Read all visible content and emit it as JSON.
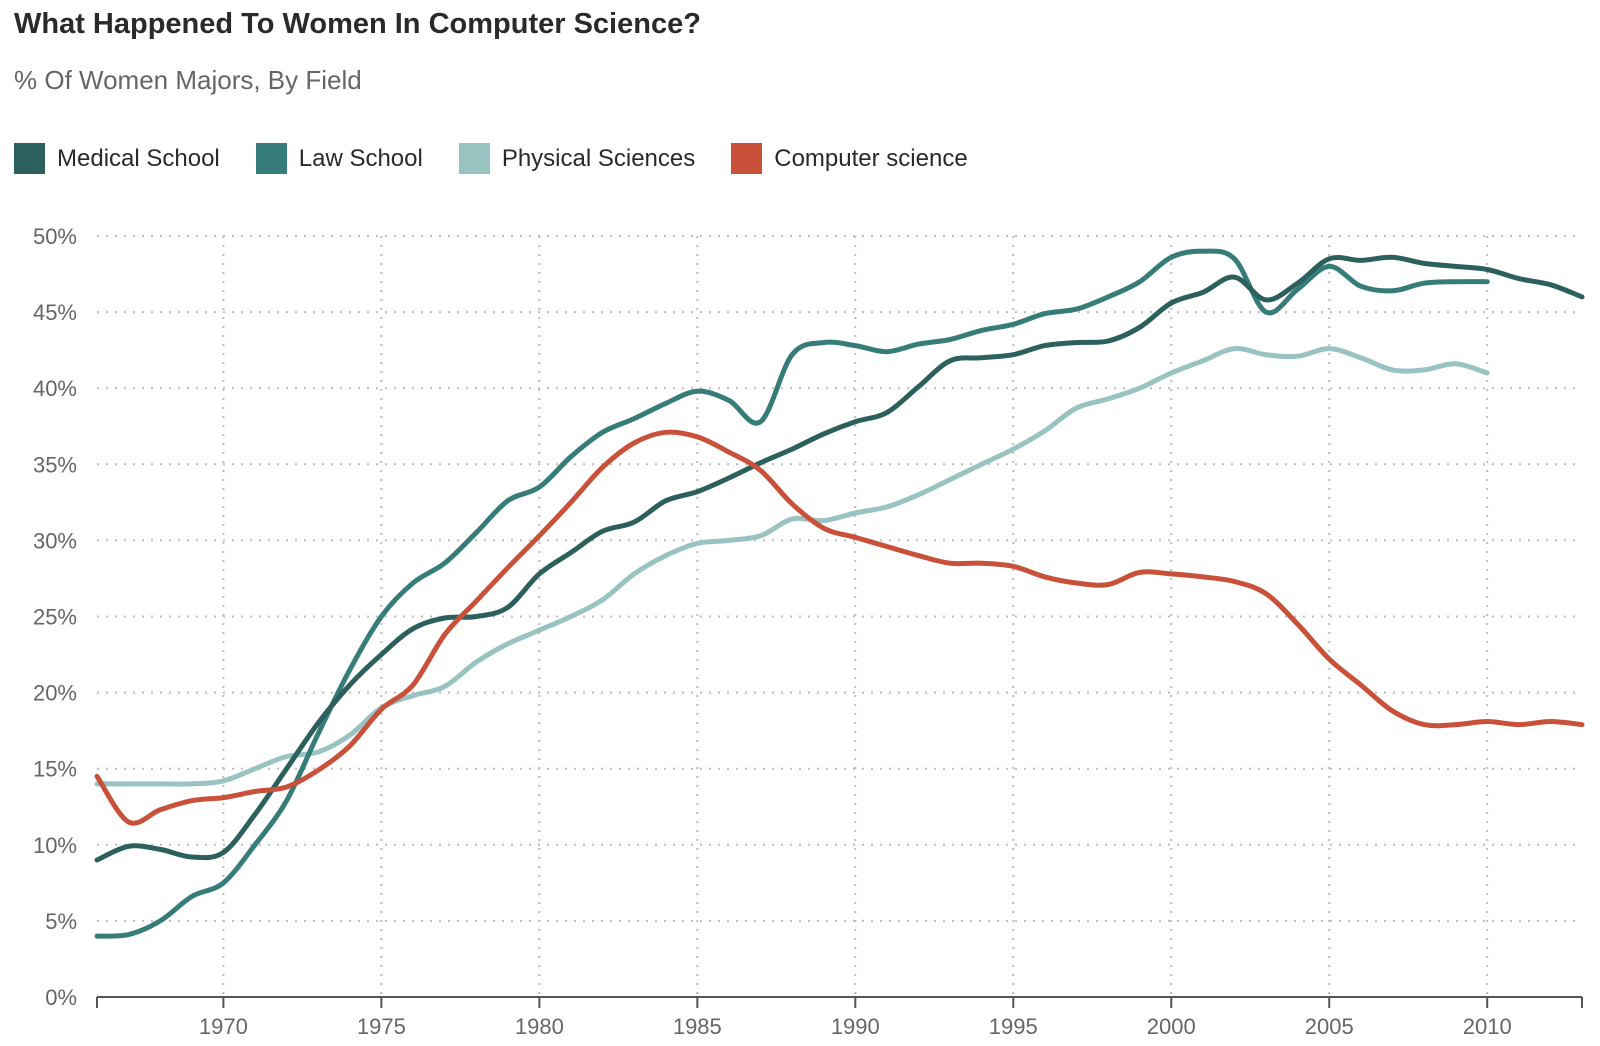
{
  "title": "What Happened To Women In Computer Science?",
  "subtitle": "% Of Women Majors, By Field",
  "chart_data": {
    "type": "line",
    "title": "What Happened To Women In Computer Science?",
    "subtitle": "% Of Women Majors, By Field",
    "xlabel": "",
    "ylabel": "",
    "xlim": [
      1966,
      2013
    ],
    "ylim": [
      0,
      50
    ],
    "x_ticks": [
      1970,
      1975,
      1980,
      1985,
      1990,
      1995,
      2000,
      2005,
      2010
    ],
    "y_ticks": [
      0,
      5,
      10,
      15,
      20,
      25,
      30,
      35,
      40,
      45,
      50
    ],
    "x_tick_labels": [
      "1970",
      "1975",
      "1980",
      "1985",
      "1990",
      "1995",
      "2000",
      "2005",
      "2010"
    ],
    "y_tick_labels": [
      "0%",
      "5%",
      "10%",
      "15%",
      "20%",
      "25%",
      "30%",
      "35%",
      "40%",
      "45%",
      "50%"
    ],
    "grid": true,
    "legend_position": "top-left",
    "series": [
      {
        "name": "Medical School",
        "color": "#2b605c",
        "x": [
          1966,
          1967,
          1968,
          1969,
          1970,
          1971,
          1972,
          1973,
          1974,
          1975,
          1976,
          1977,
          1978,
          1979,
          1980,
          1981,
          1982,
          1983,
          1984,
          1985,
          1986,
          1987,
          1988,
          1989,
          1990,
          1991,
          1992,
          1993,
          1994,
          1995,
          1996,
          1997,
          1998,
          1999,
          2000,
          2001,
          2002,
          2003,
          2004,
          2005,
          2006,
          2007,
          2008,
          2009,
          2010,
          2011,
          2012,
          2013
        ],
        "y": [
          9.0,
          9.9,
          9.7,
          9.2,
          9.5,
          12.0,
          15.0,
          18.0,
          20.5,
          22.5,
          24.2,
          24.9,
          25.0,
          25.6,
          27.8,
          29.2,
          30.6,
          31.2,
          32.6,
          33.2,
          34.1,
          35.1,
          36.0,
          37.0,
          37.8,
          38.4,
          40.1,
          41.8,
          42.0,
          42.2,
          42.8,
          43.0,
          43.1,
          44.0,
          45.6,
          46.3,
          47.3,
          45.8,
          46.9,
          48.5,
          48.4,
          48.6,
          48.2,
          48.0,
          47.8,
          47.2,
          46.8,
          46.0
        ]
      },
      {
        "name": "Law School",
        "color": "#367d79",
        "x": [
          1966,
          1967,
          1968,
          1969,
          1970,
          1971,
          1972,
          1973,
          1974,
          1975,
          1976,
          1977,
          1978,
          1979,
          1980,
          1981,
          1982,
          1983,
          1984,
          1985,
          1986,
          1987,
          1988,
          1989,
          1990,
          1991,
          1992,
          1993,
          1994,
          1995,
          1996,
          1997,
          1998,
          1999,
          2000,
          2001,
          2002,
          2003,
          2004,
          2005,
          2006,
          2007,
          2008,
          2009,
          2010
        ],
        "y": [
          4.0,
          4.1,
          5.0,
          6.6,
          7.5,
          10.0,
          12.9,
          17.3,
          21.5,
          25.0,
          27.2,
          28.5,
          30.5,
          32.6,
          33.5,
          35.5,
          37.1,
          38.0,
          39.0,
          39.8,
          39.2,
          37.8,
          42.2,
          43.0,
          42.8,
          42.4,
          42.9,
          43.2,
          43.8,
          44.2,
          44.9,
          45.2,
          46.0,
          47.0,
          48.6,
          49.0,
          48.5,
          45.0,
          46.5,
          48.0,
          46.7,
          46.4,
          46.9,
          47.0,
          47.0
        ]
      },
      {
        "name": "Physical Sciences",
        "color": "#98c3c1",
        "x": [
          1966,
          1967,
          1968,
          1969,
          1970,
          1971,
          1972,
          1973,
          1974,
          1975,
          1976,
          1977,
          1978,
          1979,
          1980,
          1981,
          1982,
          1983,
          1984,
          1985,
          1986,
          1987,
          1988,
          1989,
          1990,
          1991,
          1992,
          1993,
          1994,
          1995,
          1996,
          1997,
          1998,
          1999,
          2000,
          2001,
          2002,
          2003,
          2004,
          2005,
          2006,
          2007,
          2008,
          2009,
          2010
        ],
        "y": [
          14.0,
          14.0,
          14.0,
          14.0,
          14.2,
          15.0,
          15.8,
          16.1,
          17.2,
          19.0,
          19.8,
          20.4,
          22.0,
          23.2,
          24.1,
          25.0,
          26.1,
          27.8,
          29.0,
          29.8,
          30.0,
          30.3,
          31.4,
          31.3,
          31.8,
          32.2,
          33.0,
          34.0,
          35.0,
          36.0,
          37.2,
          38.7,
          39.3,
          40.0,
          41.0,
          41.8,
          42.6,
          42.2,
          42.1,
          42.6,
          42.0,
          41.2,
          41.2,
          41.6,
          41.0
        ]
      },
      {
        "name": "Computer science",
        "color": "#c9513a",
        "x": [
          1966,
          1967,
          1968,
          1969,
          1970,
          1971,
          1972,
          1973,
          1974,
          1975,
          1976,
          1977,
          1978,
          1979,
          1980,
          1981,
          1982,
          1983,
          1984,
          1985,
          1986,
          1987,
          1988,
          1989,
          1990,
          1991,
          1992,
          1993,
          1994,
          1995,
          1996,
          1997,
          1998,
          1999,
          2000,
          2001,
          2002,
          2003,
          2004,
          2005,
          2006,
          2007,
          2008,
          2009,
          2010,
          2011,
          2012,
          2013
        ],
        "y": [
          14.5,
          11.5,
          12.3,
          12.9,
          13.1,
          13.5,
          13.8,
          14.9,
          16.5,
          18.9,
          20.5,
          23.8,
          26.0,
          28.2,
          30.3,
          32.5,
          34.8,
          36.4,
          37.1,
          36.8,
          35.8,
          34.6,
          32.4,
          30.8,
          30.2,
          29.6,
          29.0,
          28.5,
          28.5,
          28.3,
          27.6,
          27.2,
          27.1,
          27.9,
          27.8,
          27.6,
          27.3,
          26.5,
          24.5,
          22.2,
          20.5,
          18.8,
          17.9,
          17.9,
          18.1,
          17.9,
          18.1,
          17.9
        ]
      }
    ]
  }
}
